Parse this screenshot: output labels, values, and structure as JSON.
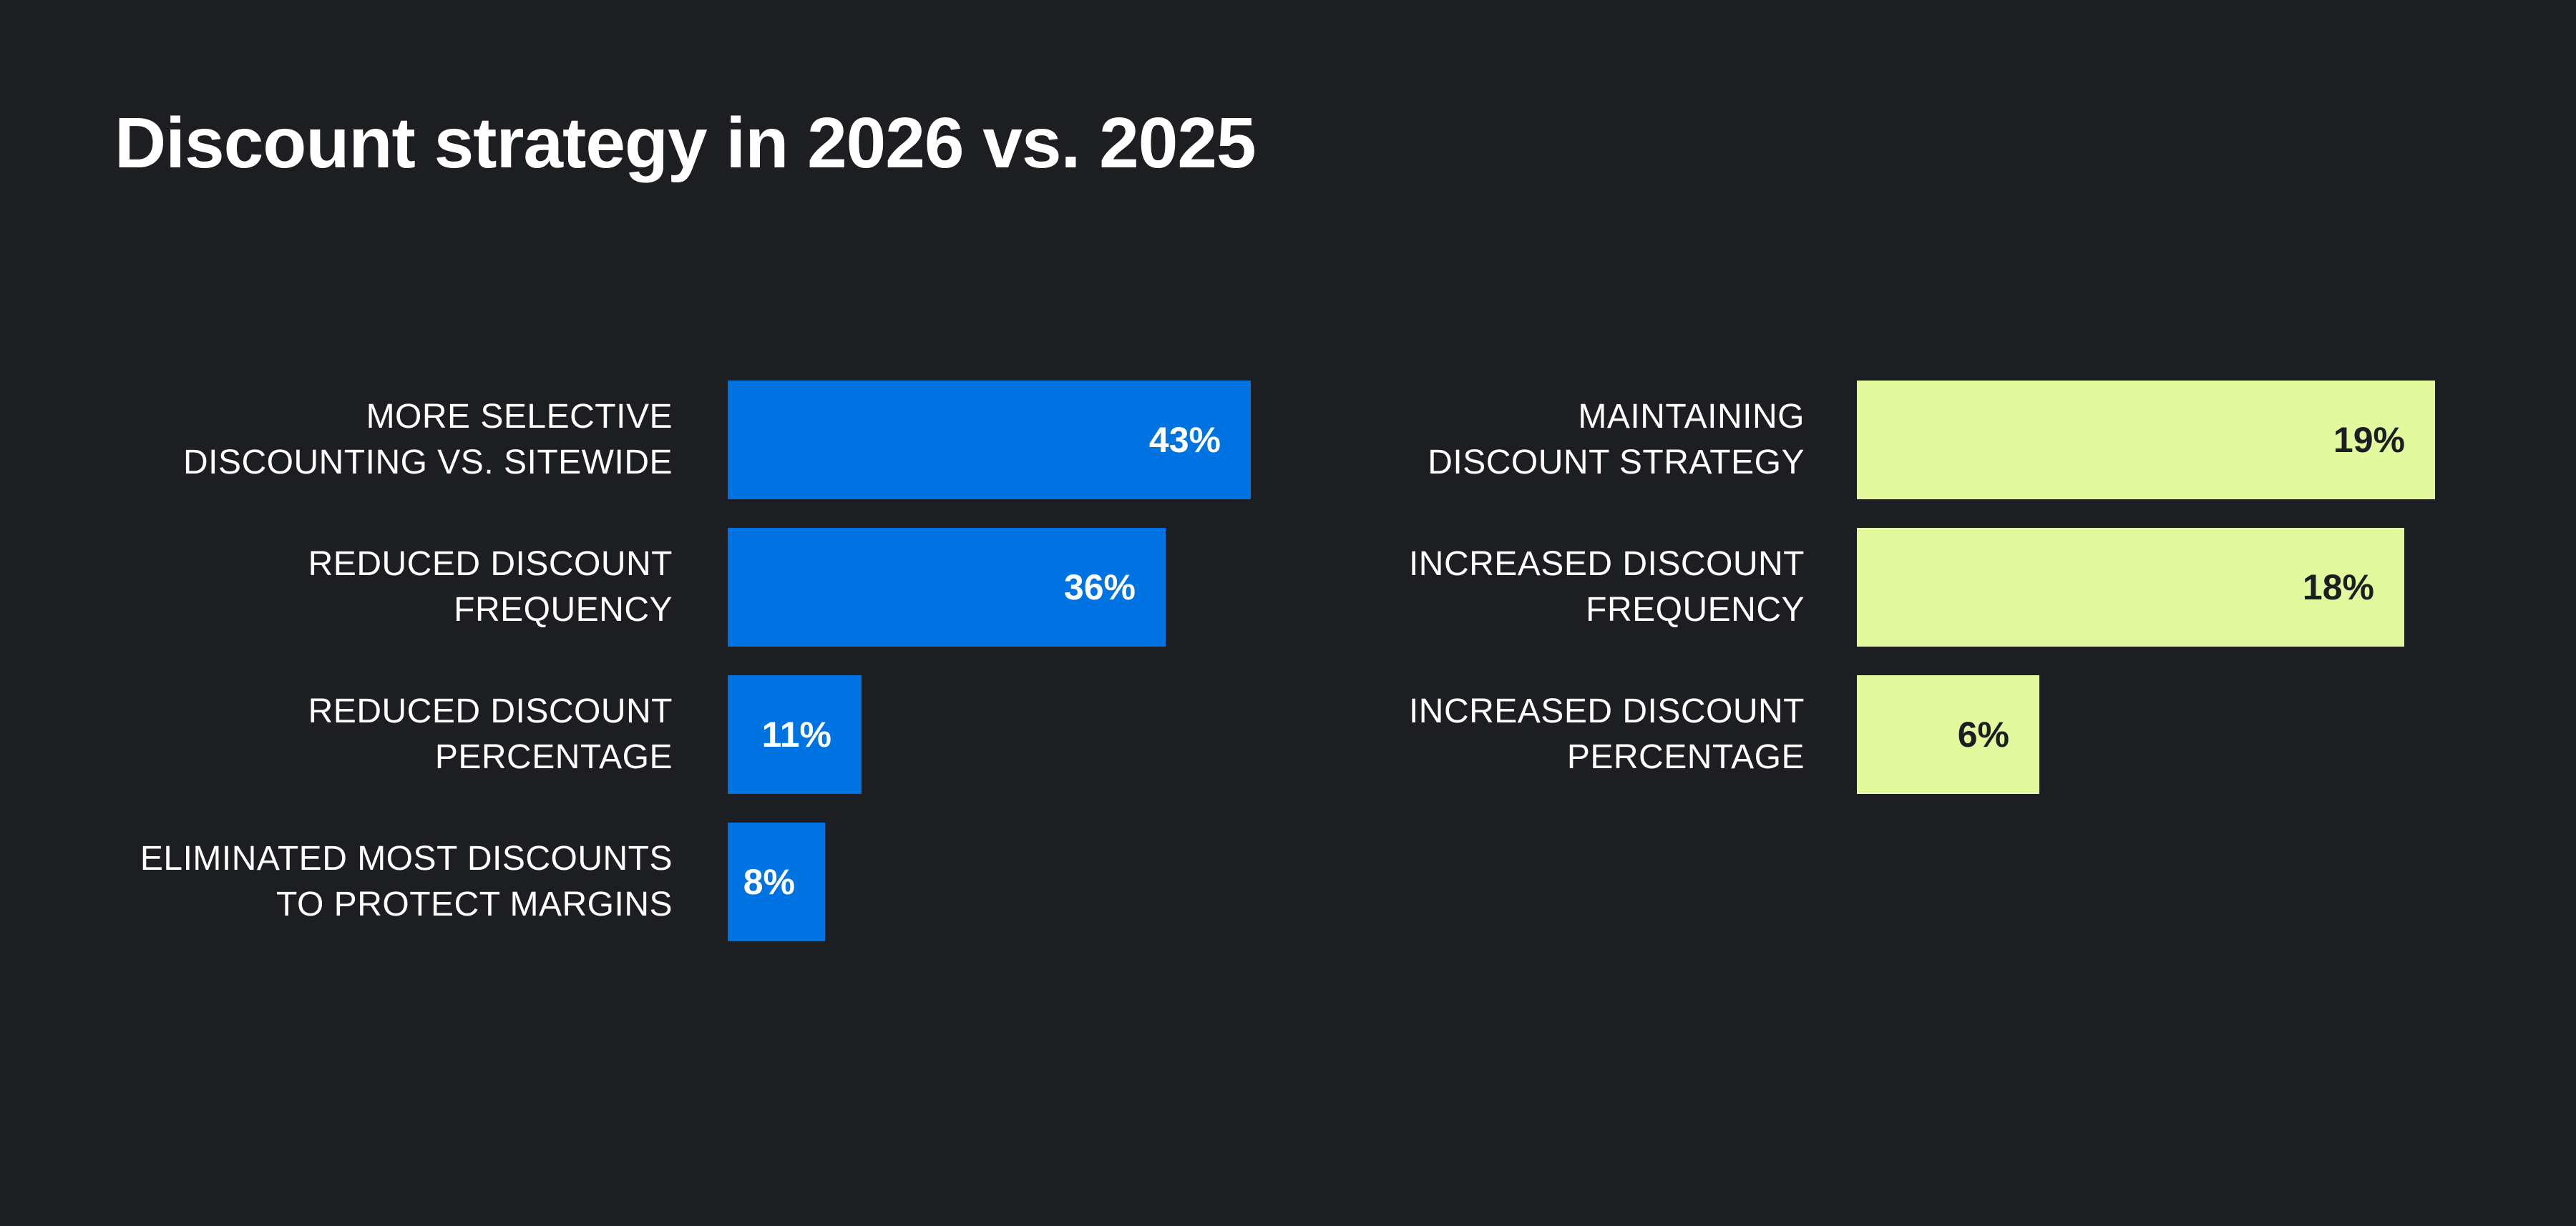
{
  "title": "Discount strategy in 2026 vs. 2025",
  "chart_data": [
    {
      "type": "bar",
      "orientation": "horizontal",
      "color": "#0073e2",
      "value_text_color": "#ffffff",
      "categories": [
        [
          "MORE SELECTIVE",
          "DISCOUNTING VS. SITEWIDE"
        ],
        [
          "REDUCED DISCOUNT",
          "FREQUENCY"
        ],
        [
          "REDUCED DISCOUNT",
          "PERCENTAGE"
        ],
        [
          "ELIMINATED MOST DISCOUNTS",
          "TO PROTECT MARGINS"
        ]
      ],
      "values": [
        43,
        36,
        11,
        8
      ],
      "value_labels": [
        "43%",
        "36%",
        "11%",
        "8%"
      ]
    },
    {
      "type": "bar",
      "orientation": "horizontal",
      "color": "#e3f99e",
      "value_text_color": "#1c1e22",
      "categories": [
        [
          "MAINTAINING",
          "DISCOUNT STRATEGY"
        ],
        [
          "INCREASED DISCOUNT",
          "FREQUENCY"
        ],
        [
          "INCREASED DISCOUNT",
          "PERCENTAGE"
        ]
      ],
      "values": [
        19,
        18,
        6
      ],
      "value_labels": [
        "19%",
        "18%",
        "6%"
      ]
    }
  ],
  "colors": {
    "background": "#1c1e22",
    "text": "#ffffff"
  }
}
